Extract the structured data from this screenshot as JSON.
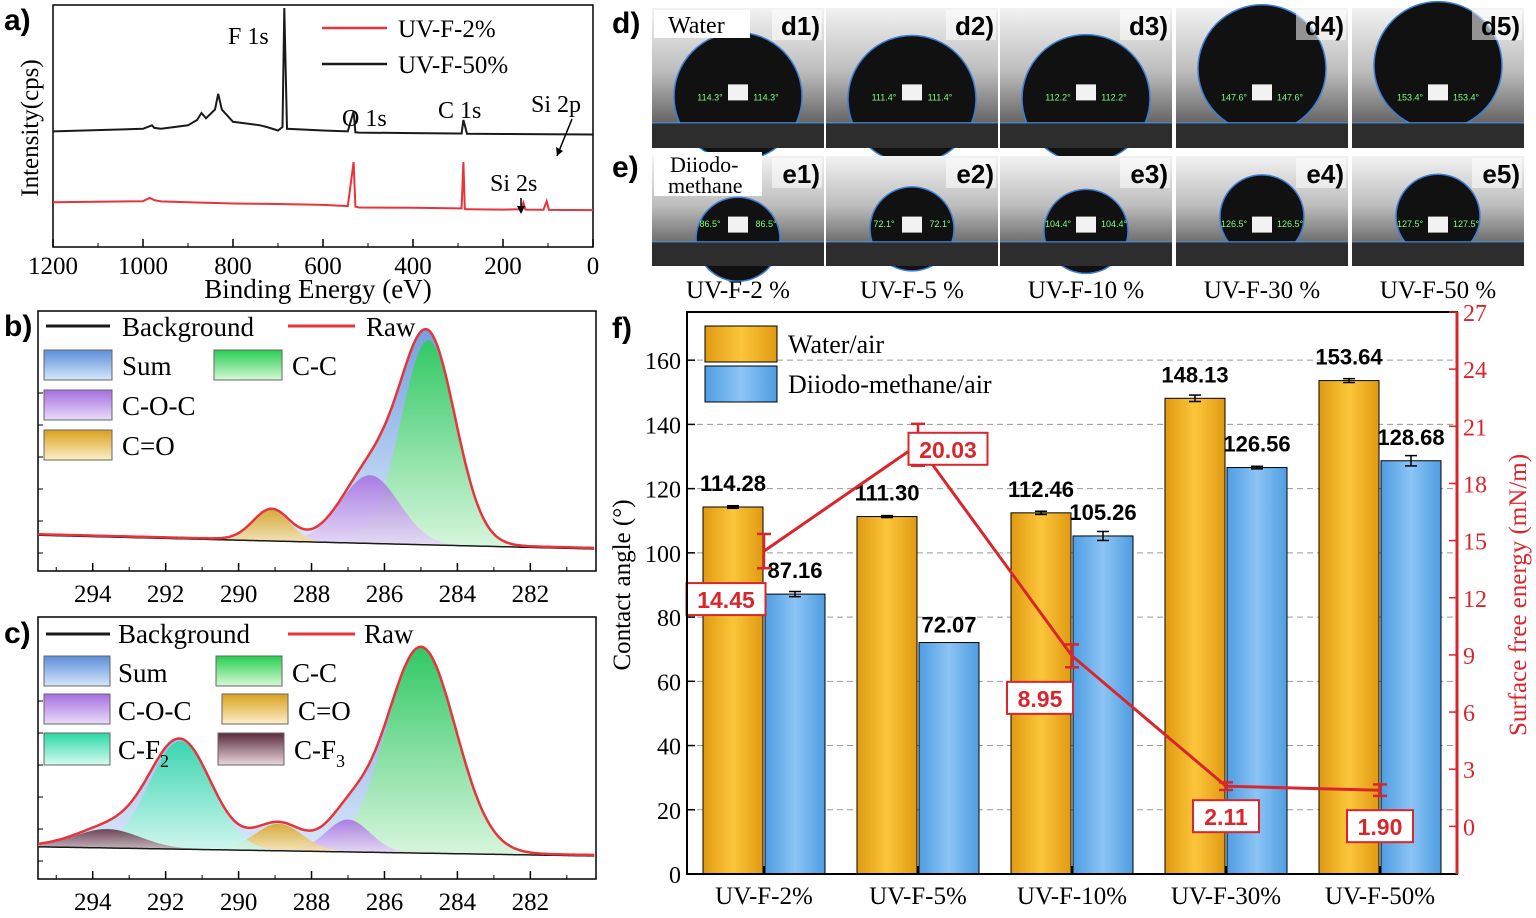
{
  "colors": {
    "red": "#e8333a",
    "black": "#1a1a1a",
    "orange": "#f4b82a",
    "blue": "#6fb3ee",
    "purple": "#b57be5",
    "green": "#2ed45a",
    "sumblue": "#6b9ee0",
    "teal": "#3fe0b2",
    "brown": "#6e3a4a",
    "line_red": "#d9262c"
  },
  "chart_data": [
    {
      "panel": "a)",
      "type": "line",
      "xlabel": "Binding Energy (eV)",
      "ylabel": "Intensity(cps)",
      "xlim": [
        1200,
        0
      ],
      "x_ticks": [
        "1200",
        "1000",
        "800",
        "600",
        "400",
        "200",
        "0"
      ],
      "series": [
        {
          "name": "UV-F-2%",
          "color": "#e8333a",
          "x": [
            1200,
            1000,
            985,
            975,
            960,
            900,
            850,
            800,
            750,
            700,
            600,
            545,
            532,
            528,
            520,
            400,
            300,
            292,
            288,
            285,
            280,
            200,
            160,
            155,
            150,
            110,
            103,
            98,
            0
          ],
          "y": [
            1.0,
            1.6,
            3.5,
            2.2,
            1.5,
            1.0,
            0.6,
            0.3,
            0.1,
            0.0,
            -0.5,
            -1.2,
            24,
            -1.5,
            -2.0,
            -2.2,
            -2.5,
            -2.5,
            24,
            -2.8,
            -3.0,
            -3.2,
            -3.0,
            0.8,
            -3.2,
            -3.3,
            1.6,
            -3.4,
            -3.5
          ]
        },
        {
          "name": "UV-F-50%",
          "color": "#1a1a1a",
          "x": [
            1200,
            1000,
            980,
            975,
            960,
            900,
            880,
            870,
            860,
            840,
            833,
            825,
            800,
            740,
            725,
            700,
            690,
            686,
            680,
            600,
            545,
            532,
            528,
            520,
            400,
            300,
            292,
            288,
            285,
            280,
            200,
            100,
            0
          ],
          "y": [
            1.5,
            3.0,
            5.0,
            3.5,
            3.0,
            5.0,
            8.0,
            12.0,
            9.0,
            14.0,
            23.0,
            14.0,
            7.0,
            5.0,
            4.0,
            2.0,
            4.0,
            72.0,
            3.0,
            2.0,
            1.5,
            13.0,
            1.0,
            0.8,
            0.5,
            0.3,
            0.3,
            8.0,
            5.0,
            0.2,
            0.0,
            -0.2,
            -0.3
          ]
        }
      ],
      "annotations": [
        "F 1s",
        "O 1s",
        "C 1s",
        "Si 2p",
        "Si 2s"
      ]
    },
    {
      "panel": "b)",
      "type": "area",
      "xlim": [
        295.5,
        280.2
      ],
      "x_ticks": [
        "294",
        "292",
        "290",
        "288",
        "286",
        "284",
        "282"
      ],
      "legend": [
        "Background",
        "Raw",
        "Sum",
        "C-C",
        "C-O-C",
        "C=O"
      ],
      "peaks": [
        {
          "name": "C-C",
          "center": 284.8,
          "height": 6.6,
          "sigma": 0.75
        },
        {
          "name": "C-O-C",
          "center": 286.4,
          "height": 2.2,
          "sigma": 0.8
        },
        {
          "name": "C=O",
          "center": 289.1,
          "height": 1.0,
          "sigma": 0.5
        }
      ]
    },
    {
      "panel": "c)",
      "type": "area",
      "xlim": [
        295.5,
        280.2
      ],
      "x_ticks": [
        "294",
        "292",
        "290",
        "288",
        "286",
        "284",
        "282"
      ],
      "legend": [
        "Background",
        "Raw",
        "Sum",
        "C-C",
        "C-O-C",
        "C=O",
        "C-F2",
        "C-F3"
      ],
      "peaks": [
        {
          "name": "C-C",
          "center": 285.0,
          "height": 7.6,
          "sigma": 0.95
        },
        {
          "name": "C-O-C",
          "center": 287.0,
          "height": 1.2,
          "sigma": 0.6
        },
        {
          "name": "C=O",
          "center": 288.9,
          "height": 1.0,
          "sigma": 0.65
        },
        {
          "name": "C-F2",
          "center": 291.6,
          "height": 4.0,
          "sigma": 0.85
        },
        {
          "name": "C-F3",
          "center": 293.6,
          "height": 0.7,
          "sigma": 0.9
        }
      ]
    },
    {
      "panel": "f)",
      "type": "bar",
      "categories": [
        "UV-F-2%",
        "UV-F-5%",
        "UV-F-10%",
        "UV-F-30%",
        "UV-F-50%"
      ],
      "ylabel": "Contact angle (°)",
      "y2label": "Surface free energy (mN/m)",
      "ylim": [
        0,
        175
      ],
      "y_ticks": [
        0,
        20,
        40,
        60,
        80,
        100,
        120,
        140,
        160
      ],
      "y2lim": [
        -2.5,
        27
      ],
      "y2_ticks": [
        0,
        3,
        6,
        9,
        12,
        15,
        18,
        21,
        24,
        27
      ],
      "series": [
        {
          "name": "Water/air",
          "values": [
            114.28,
            111.3,
            112.46,
            148.13,
            153.64
          ],
          "labels": [
            "114.28",
            "111.30",
            "112.46",
            "148.13",
            "153.64"
          ],
          "errors": [
            0.4,
            0.3,
            0.5,
            1.0,
            0.6
          ]
        },
        {
          "name": "Diiodo-methane/air",
          "values": [
            87.16,
            72.07,
            105.26,
            126.56,
            128.68
          ],
          "labels": [
            "87.16",
            "72.07",
            "105.26",
            "126.56",
            "128.68"
          ],
          "errors": [
            0.8,
            0.0,
            1.4,
            0.4,
            1.6
          ]
        }
      ],
      "line": {
        "values": [
          14.45,
          20.03,
          8.95,
          2.11,
          1.9
        ],
        "labels": [
          "14.45",
          "20.03",
          "8.95",
          "2.11",
          "1.90"
        ],
        "errors": [
          0.9,
          1.1,
          0.6,
          0.2,
          0.3
        ]
      }
    }
  ],
  "panels": {
    "a": {
      "label": "a)"
    },
    "b": {
      "label": "b)"
    },
    "c": {
      "label": "c)"
    },
    "d": {
      "label": "d)",
      "medium": "Water",
      "images": [
        {
          "tag": "d1)",
          "angle": "114.3°"
        },
        {
          "tag": "d2)",
          "angle": "111.4°"
        },
        {
          "tag": "d3)",
          "angle": "112.2°"
        },
        {
          "tag": "d4)",
          "angle": "147.6°"
        },
        {
          "tag": "d5)",
          "angle": "153.4°"
        }
      ]
    },
    "e": {
      "label": "e)",
      "medium_line1": "Diiodo-",
      "medium_line2": "methane",
      "images": [
        {
          "tag": "e1)",
          "angle": "86.5°"
        },
        {
          "tag": "e2)",
          "angle": "72.1°"
        },
        {
          "tag": "e3)",
          "angle": "104.4°"
        },
        {
          "tag": "e4)",
          "angle": "126.5°"
        },
        {
          "tag": "e5)",
          "angle": "127.5°"
        }
      ]
    },
    "sample_labels": [
      "UV-F-2 %",
      "UV-F-5 %",
      "UV-F-10 %",
      "UV-F-30 %",
      "UV-F-50 %"
    ],
    "f": {
      "label": "f)"
    }
  },
  "legend_b": {
    "background": "Background",
    "raw": "Raw",
    "sum": "Sum",
    "cc": "C-C",
    "coc": "C-O-C",
    "co": "C=O"
  },
  "legend_c": {
    "background": "Background",
    "raw": "Raw",
    "sum": "Sum",
    "cc": "C-C",
    "coc": "C-O-C",
    "co": "C=O",
    "cf2_main": "C-F",
    "cf2_sub": "2",
    "cf3_main": "C-F",
    "cf3_sub": "3"
  }
}
